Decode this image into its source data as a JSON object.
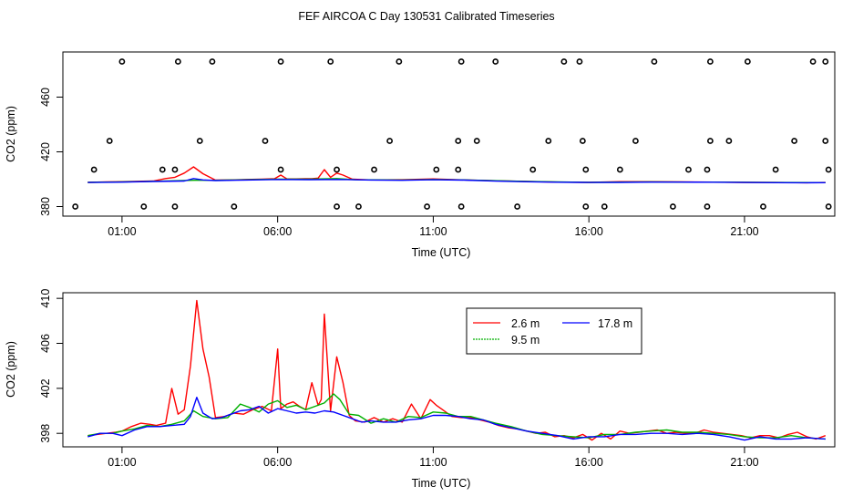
{
  "page": {
    "title": "FEF AIRCOA C  Day 130531  Calibrated Timeseries"
  },
  "colors": {
    "red": "#ff0000",
    "green": "#00b000",
    "blue": "#0000ff",
    "axis": "#000000"
  },
  "chart_data": [
    {
      "type": "scatter",
      "title": "",
      "xlabel": "Time (UTC)",
      "ylabel": "CO2 (ppm)",
      "xlim": [
        -0.9,
        23.9
      ],
      "ylim": [
        373,
        493
      ],
      "x_ticks": [
        1,
        6,
        11,
        16,
        21
      ],
      "x_tick_labels": [
        "01:00",
        "06:00",
        "11:00",
        "16:00",
        "21:00"
      ],
      "y_ticks": [
        380,
        420,
        460
      ],
      "y_tick_labels": [
        "380",
        "420",
        "460"
      ],
      "grid": false,
      "markers": {
        "style": "open-circle",
        "color": "#000000",
        "levels": [
          380,
          407,
          428,
          486
        ],
        "x_at_380": [
          -0.5,
          1.7,
          2.7,
          4.6,
          7.9,
          8.6,
          10.8,
          11.9,
          13.7,
          15.9,
          16.5,
          18.7,
          19.8,
          21.6,
          23.7
        ],
        "x_at_407": [
          0.1,
          2.3,
          2.7,
          6.1,
          7.9,
          9.1,
          11.1,
          11.8,
          14.2,
          15.9,
          17.0,
          19.2,
          19.8,
          22.0,
          23.7
        ],
        "x_at_428": [
          0.6,
          3.5,
          5.6,
          9.6,
          11.8,
          12.4,
          14.7,
          15.8,
          17.5,
          19.9,
          20.5,
          22.6,
          23.6
        ],
        "x_at_486": [
          1.0,
          2.8,
          3.9,
          6.1,
          7.7,
          9.9,
          11.9,
          13.0,
          15.2,
          15.7,
          18.1,
          19.9,
          21.1,
          23.2,
          23.6
        ]
      },
      "series": [
        {
          "name": "2.6 m",
          "color": "#ff0000",
          "x": [
            -0.1,
            0.5,
            1.0,
            1.5,
            2.0,
            2.4,
            2.7,
            3.0,
            3.3,
            3.6,
            4.0,
            4.5,
            5.0,
            5.5,
            5.9,
            6.1,
            6.3,
            6.6,
            6.9,
            7.1,
            7.3,
            7.5,
            7.7,
            7.9,
            8.1,
            8.4,
            9.0,
            10.0,
            11.0,
            12.0,
            13.0,
            14.0,
            15.0,
            16.0,
            17.0,
            18.0,
            19.0,
            20.0,
            21.0,
            22.0,
            23.0,
            23.6
          ],
          "values": [
            397.7,
            398.0,
            398.2,
            398.5,
            398.7,
            400.5,
            401.4,
            404.5,
            409.0,
            404.0,
            399.3,
            399.5,
            399.8,
            400.0,
            400.3,
            403.0,
            400.2,
            400.2,
            400.4,
            400.3,
            400.8,
            407.0,
            401.4,
            404.5,
            403.0,
            400.0,
            399.5,
            399.6,
            400.2,
            399.5,
            398.9,
            398.3,
            397.9,
            397.7,
            398.2,
            398.2,
            398.0,
            397.9,
            397.7,
            397.6,
            397.4,
            397.6
          ]
        },
        {
          "name": "9.5 m",
          "color": "#00b000",
          "x": [
            -0.1,
            1.0,
            2.0,
            3.3,
            4.0,
            5.0,
            6.0,
            7.0,
            7.9,
            8.5,
            10.0,
            11.0,
            12.0,
            14.0,
            16.0,
            18.0,
            20.0,
            22.0,
            23.6
          ],
          "values": [
            397.7,
            398.0,
            398.5,
            399.2,
            399.2,
            399.6,
            400.0,
            400.0,
            400.5,
            399.6,
            399.4,
            399.8,
            399.5,
            398.4,
            397.7,
            398.0,
            397.9,
            397.6,
            397.5
          ]
        },
        {
          "name": "17.8 m",
          "color": "#0000ff",
          "x": [
            -0.1,
            1.0,
            2.0,
            3.0,
            3.3,
            3.6,
            4.0,
            5.0,
            6.0,
            7.0,
            8.0,
            9.0,
            10.0,
            11.0,
            12.0,
            13.0,
            14.0,
            15.0,
            16.0,
            17.0,
            18.0,
            19.0,
            20.0,
            21.0,
            22.0,
            23.0,
            23.6
          ],
          "values": [
            397.6,
            397.9,
            398.3,
            398.7,
            400.5,
            399.5,
            399.0,
            399.4,
            399.8,
            399.7,
            399.8,
            399.4,
            399.2,
            399.6,
            399.3,
            398.6,
            398.1,
            397.8,
            397.6,
            397.7,
            397.9,
            397.9,
            397.8,
            397.6,
            397.5,
            397.4,
            397.5
          ]
        }
      ]
    },
    {
      "type": "line",
      "title": "",
      "xlabel": "Time (UTC)",
      "ylabel": "CO2 (ppm)",
      "xlim": [
        -0.9,
        23.9
      ],
      "ylim": [
        396.8,
        410.5
      ],
      "x_ticks": [
        1,
        6,
        11,
        16,
        21
      ],
      "x_tick_labels": [
        "01:00",
        "06:00",
        "11:00",
        "16:00",
        "21:00"
      ],
      "y_ticks": [
        398,
        402,
        406,
        410
      ],
      "y_tick_labels": [
        "398",
        "402",
        "406",
        "410"
      ],
      "grid": false,
      "legend": {
        "placement": "top-center",
        "entries": [
          {
            "label": "2.6 m",
            "color": "#ff0000"
          },
          {
            "label": "9.5 m",
            "color": "#00b000"
          },
          {
            "label": "17.8 m",
            "color": "#0000ff"
          }
        ]
      },
      "series": [
        {
          "name": "2.6 m",
          "color": "#ff0000",
          "x": [
            -0.1,
            0.2,
            0.5,
            0.8,
            1.0,
            1.3,
            1.6,
            1.9,
            2.1,
            2.4,
            2.6,
            2.8,
            3.0,
            3.2,
            3.4,
            3.6,
            3.8,
            4.0,
            4.3,
            4.6,
            4.9,
            5.2,
            5.5,
            5.8,
            6.0,
            6.1,
            6.3,
            6.5,
            6.7,
            6.9,
            7.1,
            7.3,
            7.4,
            7.5,
            7.7,
            7.9,
            8.1,
            8.3,
            8.5,
            8.8,
            9.1,
            9.4,
            9.7,
            10.0,
            10.3,
            10.6,
            10.9,
            11.1,
            11.3,
            11.6,
            11.9,
            12.2,
            12.5,
            12.8,
            13.1,
            13.4,
            13.7,
            14.0,
            14.3,
            14.6,
            14.9,
            15.2,
            15.5,
            15.8,
            16.1,
            16.4,
            16.7,
            17.0,
            17.3,
            17.6,
            17.9,
            18.2,
            18.5,
            18.8,
            19.1,
            19.4,
            19.7,
            20.0,
            20.3,
            20.6,
            20.9,
            21.2,
            21.5,
            21.8,
            22.1,
            22.4,
            22.7,
            23.0,
            23.3,
            23.6
          ],
          "values": [
            397.8,
            397.9,
            398.0,
            398.1,
            398.2,
            398.6,
            398.9,
            398.8,
            398.7,
            398.9,
            402.0,
            399.7,
            400.1,
            404.0,
            409.8,
            405.5,
            403.0,
            399.4,
            399.5,
            399.8,
            399.7,
            400.1,
            400.4,
            400.0,
            405.5,
            400.2,
            400.6,
            400.8,
            400.4,
            400.1,
            402.5,
            400.5,
            401.0,
            408.6,
            400.0,
            404.8,
            402.5,
            399.6,
            399.1,
            399.0,
            399.4,
            399.0,
            399.3,
            399.0,
            400.6,
            399.3,
            401.0,
            400.5,
            400.1,
            399.5,
            399.4,
            399.4,
            399.2,
            399.0,
            398.7,
            398.5,
            398.4,
            398.2,
            398.0,
            398.1,
            397.7,
            397.8,
            397.6,
            397.9,
            397.4,
            398.0,
            397.5,
            398.2,
            398.0,
            398.1,
            398.2,
            398.3,
            398.0,
            398.1,
            398.0,
            398.0,
            398.3,
            398.1,
            398.0,
            397.9,
            397.8,
            397.6,
            397.8,
            397.8,
            397.6,
            397.9,
            398.1,
            397.7,
            397.5,
            397.8
          ]
        },
        {
          "name": "9.5 m",
          "color": "#00b000",
          "x": [
            -0.1,
            0.3,
            0.7,
            1.0,
            1.4,
            1.8,
            2.2,
            2.6,
            3.0,
            3.3,
            3.6,
            4.0,
            4.4,
            4.8,
            5.1,
            5.4,
            5.7,
            6.0,
            6.3,
            6.6,
            6.9,
            7.2,
            7.5,
            7.8,
            8.0,
            8.3,
            8.6,
            9.0,
            9.4,
            9.8,
            10.2,
            10.6,
            11.0,
            11.4,
            11.8,
            12.2,
            12.6,
            13.0,
            13.5,
            14.0,
            14.5,
            15.0,
            15.5,
            16.0,
            16.5,
            17.0,
            17.5,
            18.0,
            18.5,
            19.0,
            19.5,
            20.0,
            20.5,
            21.0,
            21.5,
            22.0,
            22.5,
            23.0,
            23.6
          ],
          "values": [
            397.8,
            398.0,
            398.0,
            398.2,
            398.4,
            398.7,
            398.6,
            398.8,
            399.1,
            400.0,
            399.5,
            399.3,
            399.4,
            400.6,
            400.3,
            399.9,
            400.6,
            400.9,
            400.3,
            400.5,
            400.1,
            400.4,
            400.7,
            401.5,
            401.0,
            399.7,
            399.6,
            398.9,
            399.3,
            399.0,
            399.5,
            399.4,
            399.9,
            399.8,
            399.5,
            399.5,
            399.2,
            398.9,
            398.6,
            398.2,
            397.9,
            397.8,
            397.7,
            397.6,
            397.9,
            397.9,
            398.1,
            398.2,
            398.3,
            398.1,
            398.1,
            398.0,
            397.9,
            397.7,
            397.6,
            397.6,
            397.8,
            397.6,
            397.5
          ]
        },
        {
          "name": "17.8 m",
          "color": "#0000ff",
          "x": [
            -0.1,
            0.3,
            0.7,
            1.0,
            1.4,
            1.8,
            2.2,
            2.6,
            3.0,
            3.2,
            3.4,
            3.6,
            3.9,
            4.2,
            4.5,
            4.8,
            5.1,
            5.4,
            5.7,
            6.0,
            6.3,
            6.6,
            6.9,
            7.2,
            7.5,
            7.8,
            8.1,
            8.4,
            8.7,
            9.0,
            9.4,
            9.8,
            10.2,
            10.6,
            11.0,
            11.4,
            11.8,
            12.2,
            12.6,
            13.0,
            13.5,
            14.0,
            14.5,
            15.0,
            15.5,
            16.0,
            16.5,
            17.0,
            17.5,
            18.0,
            18.5,
            19.0,
            19.5,
            20.0,
            20.5,
            21.0,
            21.5,
            22.0,
            22.5,
            23.0,
            23.6
          ],
          "values": [
            397.7,
            398.0,
            398.0,
            397.8,
            398.3,
            398.6,
            398.6,
            398.7,
            398.8,
            399.5,
            401.2,
            399.8,
            399.3,
            399.4,
            399.7,
            400.0,
            400.1,
            400.4,
            399.8,
            400.2,
            400.0,
            399.8,
            399.9,
            399.8,
            400.0,
            399.9,
            399.6,
            399.3,
            399.0,
            399.1,
            399.0,
            399.0,
            399.2,
            399.3,
            399.6,
            399.6,
            399.5,
            399.3,
            399.2,
            398.8,
            398.5,
            398.2,
            398.0,
            397.8,
            397.5,
            397.7,
            397.7,
            397.9,
            397.9,
            398.0,
            398.0,
            397.9,
            398.0,
            397.9,
            397.7,
            397.4,
            397.7,
            397.5,
            397.5,
            397.6,
            397.5
          ]
        }
      ]
    }
  ]
}
